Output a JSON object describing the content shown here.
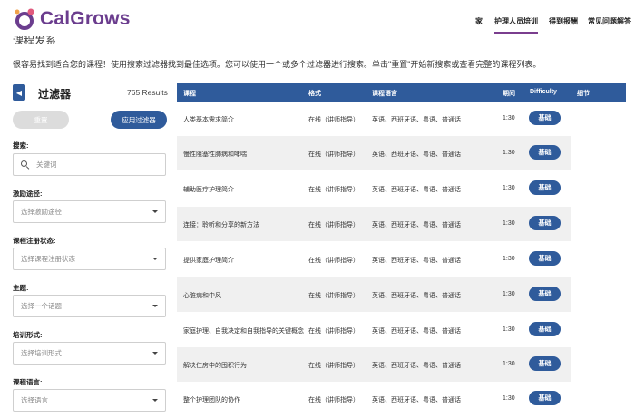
{
  "header": {
    "brand": "CalGrows",
    "nav": [
      "家",
      "护理人员培训",
      "得到报酬",
      "常见问题解答"
    ],
    "active_nav": 1,
    "brand_color": "#6b3d8e"
  },
  "page": {
    "title": "课程发系",
    "intro": "很容易找到适合您的课程！使用搜索过滤器找到最佳选项。您可以使用一个或多个过滤器进行搜索。单击\"重置\"开始新搜索或查看完整的课程列表。"
  },
  "filters": {
    "title": "过滤器",
    "results": "765 Results",
    "reset_label": "重置",
    "apply_label": "应用过滤器",
    "search_label": "搜索:",
    "search_placeholder": "关键词",
    "incentive_label": "激励途径:",
    "incentive_value": "选择激励途径",
    "enroll_label": "课程注册状态:",
    "enroll_value": "选择课程注册状态",
    "topic_label": "主题:",
    "topic_value": "选择一个话题",
    "format_label": "培训形式:",
    "format_value": "选择培训形式",
    "language_label": "课程语言:",
    "language_value": "选择语言"
  },
  "table": {
    "headers": [
      "课程",
      "格式",
      "课程语言",
      "期间",
      "Difficulty",
      "细节"
    ],
    "rows": [
      {
        "course": "人类基本需求简介",
        "format": "在线（讲师指导）",
        "language": "英语、西班牙语、粤语、普通话",
        "duration": "1:30",
        "difficulty": "基础"
      },
      {
        "course": "慢性阻塞性肺病和哮喘",
        "format": "在线（讲师指导）",
        "language": "英语、西班牙语、粤语、普通话",
        "duration": "1:30",
        "difficulty": "基础"
      },
      {
        "course": "辅助医疗护理简介",
        "format": "在线（讲师指导）",
        "language": "英语、西班牙语、粤语、普通话",
        "duration": "1:30",
        "difficulty": "基础"
      },
      {
        "course": "连接：聆听和分享的新方法",
        "format": "在线（讲师指导）",
        "language": "英语、西班牙语、粤语、普通话",
        "duration": "1:30",
        "difficulty": "基础"
      },
      {
        "course": "提供家庭护理简介",
        "format": "在线（讲师指导）",
        "language": "英语、西班牙语、粤语、普通话",
        "duration": "1:30",
        "difficulty": "基础"
      },
      {
        "course": "心脏病和中风",
        "format": "在线（讲师指导）",
        "language": "英语、西班牙语、粤语、普通话",
        "duration": "1:30",
        "difficulty": "基础"
      },
      {
        "course": "家庭护理、自我决定和自我指导的关键概念",
        "format": "在线（讲师指导）",
        "language": "英语、西班牙语、粤语、普通话",
        "duration": "1:30",
        "difficulty": "基础"
      },
      {
        "course": "解决住房中的囤积行为",
        "format": "在线（讲师指导）",
        "language": "英语、西班牙语、粤语、普通话",
        "duration": "1:30",
        "difficulty": "基础"
      },
      {
        "course": "整个护理团队的协作",
        "format": "在线（讲师指导）",
        "language": "英语、西班牙语、粤语、普通话",
        "duration": "1:30",
        "difficulty": "基础"
      }
    ]
  }
}
